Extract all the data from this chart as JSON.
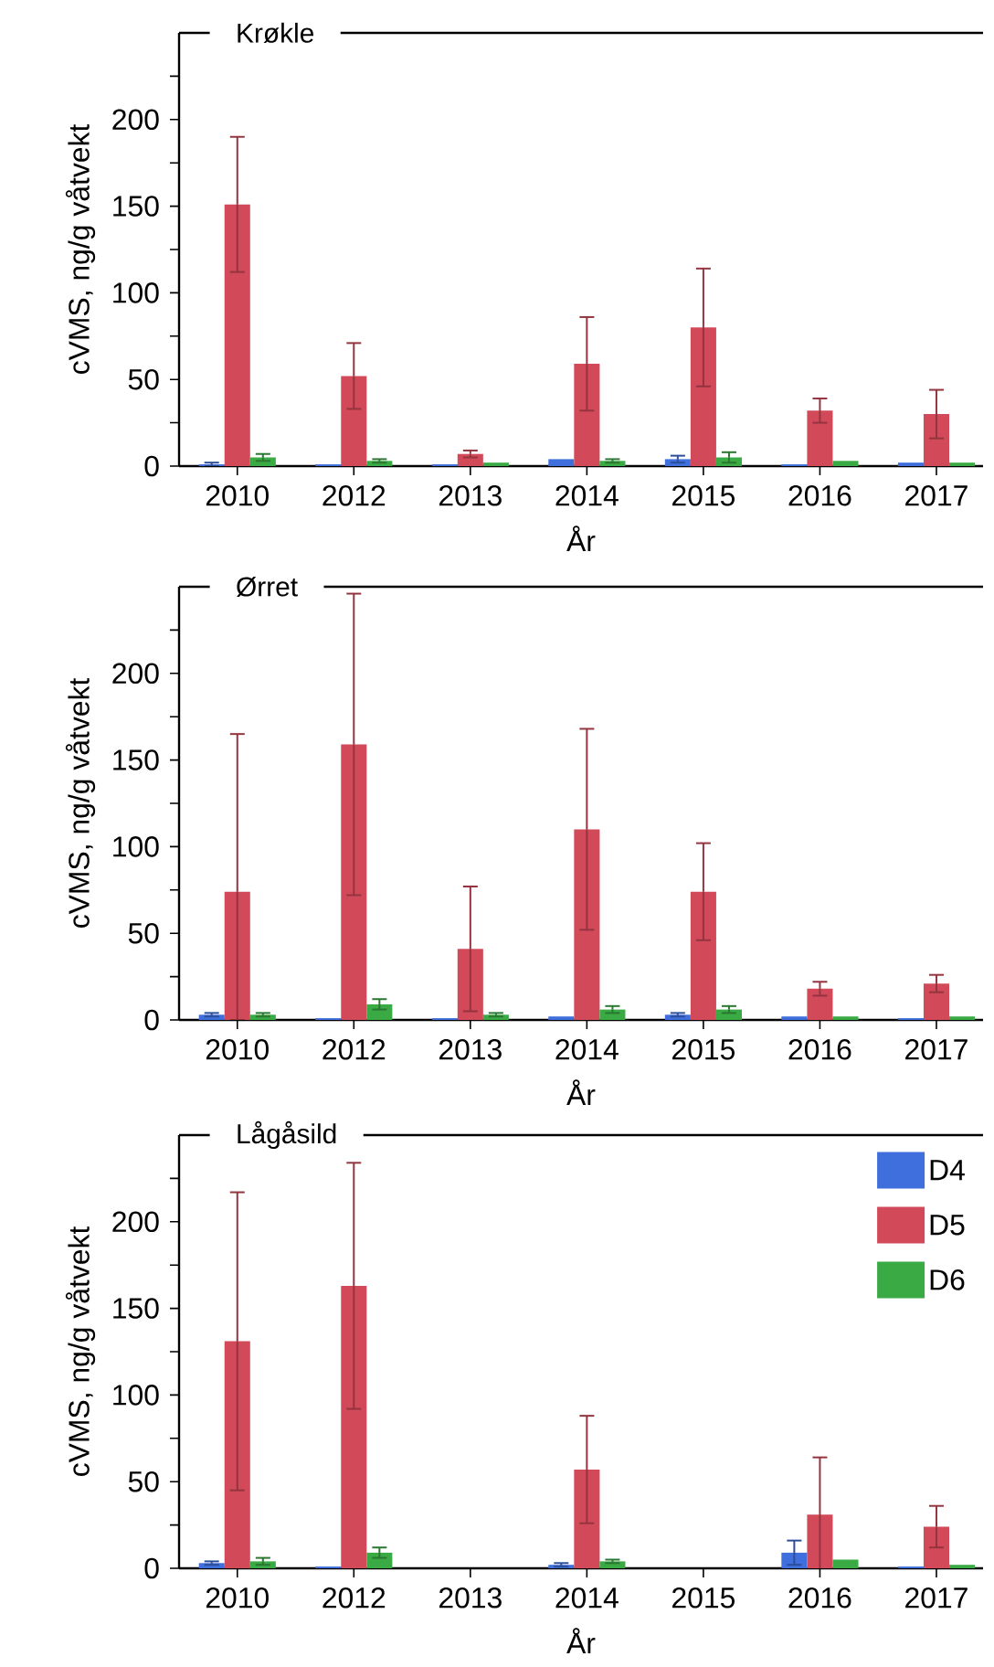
{
  "chart_data": [
    {
      "type": "bar",
      "title": "Krøkle",
      "xlabel": "År",
      "ylabel": "cVMS, ng/g våtvekt",
      "categories": [
        "2010",
        "2012",
        "2013",
        "2014",
        "2015",
        "2016",
        "2017"
      ],
      "ylim": [
        0,
        250
      ],
      "yticks": [
        0,
        {
          "value": 25,
          "label": null
        },
        50,
        {
          "value": 75,
          "label": null
        },
        100,
        {
          "value": 125,
          "label": null
        },
        150,
        {
          "value": 175,
          "label": null
        },
        200,
        {
          "value": 225,
          "label": null
        }
      ],
      "series": [
        {
          "color": "#3f6fdc",
          "values": [
            1,
            1,
            1,
            4,
            4,
            1,
            2
          ],
          "errors": [
            1,
            null,
            null,
            null,
            2,
            null,
            null
          ]
        },
        {
          "color": "#d24a5a",
          "values": [
            151,
            52,
            7,
            59,
            80,
            32,
            30
          ],
          "errors": [
            39,
            19,
            2,
            27,
            34,
            7,
            14
          ]
        },
        {
          "color": "#3aaa44",
          "values": [
            5,
            3,
            2,
            3,
            5,
            3,
            2
          ],
          "errors": [
            2,
            1,
            null,
            1,
            3,
            null,
            null
          ]
        }
      ]
    },
    {
      "type": "bar",
      "title": "Ørret",
      "xlabel": "År",
      "ylabel": "cVMS, ng/g våtvekt",
      "categories": [
        "2010",
        "2012",
        "2013",
        "2014",
        "2015",
        "2016",
        "2017"
      ],
      "ylim": [
        0,
        250
      ],
      "yticks": [
        0,
        {
          "value": 25,
          "label": null
        },
        50,
        {
          "value": 75,
          "label": null
        },
        100,
        {
          "value": 125,
          "label": null
        },
        150,
        {
          "value": 175,
          "label": null
        },
        200,
        {
          "value": 225,
          "label": null
        }
      ],
      "series": [
        {
          "color": "#3f6fdc",
          "values": [
            3,
            1,
            1,
            2,
            3,
            2,
            1
          ],
          "errors": [
            1,
            null,
            null,
            null,
            1,
            null,
            null
          ]
        },
        {
          "color": "#d24a5a",
          "values": [
            74,
            159,
            41,
            110,
            74,
            18,
            21
          ],
          "errors": [
            [
              0,
              165
            ],
            87,
            36,
            58,
            28,
            4,
            5
          ]
        },
        {
          "color": "#3aaa44",
          "values": [
            3,
            9,
            3,
            6,
            6,
            2,
            2
          ],
          "errors": [
            1,
            3,
            1,
            2,
            2,
            null,
            null
          ]
        }
      ]
    },
    {
      "type": "bar",
      "title": "Lågåsild",
      "xlabel": "År",
      "ylabel": "cVMS, ng/g våtvekt",
      "legend": "top right",
      "categories": [
        "2010",
        "2012",
        "2013",
        "2014",
        "2015",
        "2016",
        "2017"
      ],
      "ylim": [
        0,
        250
      ],
      "yticks": [
        0,
        {
          "value": 25,
          "label": null
        },
        50,
        {
          "value": 75,
          "label": null
        },
        100,
        {
          "value": 125,
          "label": null
        },
        150,
        {
          "value": 175,
          "label": null
        },
        200,
        {
          "value": 225,
          "label": null
        }
      ],
      "series": [
        {
          "name": "D4",
          "color": "#3f6fdc",
          "values": [
            3,
            1,
            null,
            2,
            null,
            9,
            1
          ],
          "errors": [
            1,
            null,
            null,
            1,
            null,
            7,
            null
          ]
        },
        {
          "name": "D5",
          "color": "#d24a5a",
          "values": [
            131,
            163,
            null,
            57,
            null,
            31,
            24
          ],
          "errors": [
            86,
            71,
            null,
            31,
            null,
            33,
            12
          ]
        },
        {
          "name": "D6",
          "color": "#3aaa44",
          "values": [
            4,
            9,
            null,
            4,
            null,
            5,
            2
          ],
          "errors": [
            2,
            3,
            null,
            1,
            null,
            null,
            null
          ]
        }
      ]
    }
  ]
}
